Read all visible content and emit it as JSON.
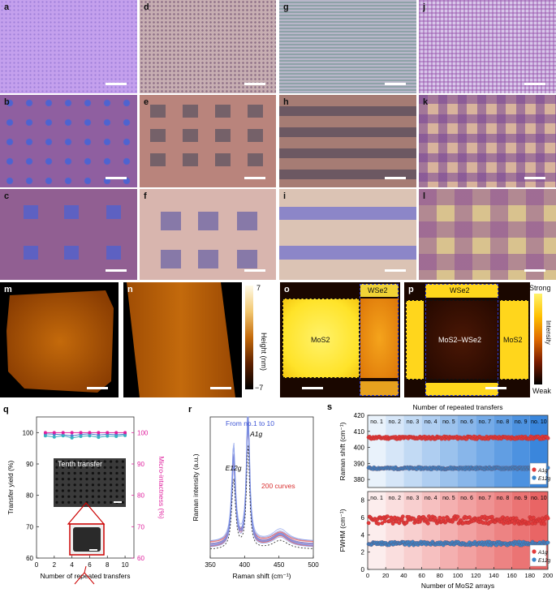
{
  "panel_labels": {
    "a": "a",
    "b": "b",
    "c": "c",
    "d": "d",
    "e": "e",
    "f": "f",
    "g": "g",
    "h": "h",
    "i": "i",
    "j": "j",
    "k": "k",
    "l": "l",
    "m": "m",
    "n": "n",
    "o": "o",
    "p": "p",
    "q": "q",
    "r": "r",
    "s": "s"
  },
  "afm_colorbar": {
    "max": "7",
    "min": "−7",
    "label": "Height (nm)"
  },
  "raman_map_o": {
    "label_wse2": "WSe2",
    "label_mos2": "MoS2"
  },
  "raman_map_p": {
    "label_wse2": "WSe2",
    "label_mos2wse2": "MoS2–WSe2",
    "label_mos2": "MoS2"
  },
  "intensity_colorbar": {
    "top": "Strong",
    "bottom": "Weak",
    "label": "Intensity"
  },
  "colors": {
    "violet": "#b592e8",
    "mauve": "#8f5d94",
    "map_dark": "#1a0700",
    "map_bright": "#ffd400",
    "afm_mid": "#b85c00",
    "red": "#d93232",
    "blue": "#4b7fd0",
    "magenta": "#e0209e"
  },
  "chart_data": [
    {
      "id": "q",
      "type": "line",
      "xlabel": "Number of repeated transfers",
      "ylabel": "Transfer yield (%)",
      "y2label": "Micro-intactness (%)",
      "xlim": [
        0,
        11
      ],
      "ylim": [
        60,
        105
      ],
      "xticks": [
        0,
        2,
        4,
        6,
        8,
        10
      ],
      "yticks": [
        60,
        70,
        80,
        90,
        100
      ],
      "x": [
        1,
        2,
        3,
        4,
        5,
        6,
        7,
        8,
        9,
        10
      ],
      "series": [
        {
          "values": [
            99.6,
            99.5,
            99.3,
            99.0,
            99.4,
            99.6,
            99.2,
            99.5,
            99.3,
            99.5
          ],
          "axis": "left"
        },
        {
          "values": [
            99.0,
            98.6,
            99.0,
            98.3,
            98.8,
            99.0,
            98.5,
            98.9,
            98.8,
            99.1
          ],
          "axis": "left"
        },
        {
          "values": [
            100,
            100,
            100,
            100,
            100,
            100,
            100,
            100,
            100,
            100
          ],
          "axis": "right"
        }
      ],
      "inset_label": "Tenth transfer"
    },
    {
      "id": "r",
      "type": "line",
      "xlabel": "Raman shift (cm⁻¹)",
      "ylabel": "Raman intensity (a.u.)",
      "xlim": [
        350,
        500
      ],
      "xticks": [
        350,
        400,
        450,
        500
      ],
      "annotations": [
        "From no.1 to 10",
        "200 curves",
        "A1g",
        "E12g"
      ],
      "peaks": [
        {
          "name": "E12g",
          "x": 384
        },
        {
          "name": "A1g",
          "x": 405
        }
      ]
    },
    {
      "id": "s-top",
      "type": "scatter",
      "title": "Number of repeated transfers",
      "ylabel": "Raman shift (cm⁻¹)",
      "xlim": [
        0,
        200
      ],
      "ylim": [
        375,
        420
      ],
      "yticks": [
        380,
        390,
        400,
        410,
        420
      ],
      "bands": [
        "no. 1",
        "no. 2",
        "no. 3",
        "no. 4",
        "no. 5",
        "no. 6",
        "no. 7",
        "no. 8",
        "no. 9",
        "no. 10"
      ],
      "series": [
        {
          "name": "A1g",
          "mean": 406,
          "spread": 0.8
        },
        {
          "name": "E12g",
          "mean": 387,
          "spread": 0.6
        }
      ]
    },
    {
      "id": "s-bottom",
      "type": "scatter",
      "xlabel": "Number of MoS2 arrays",
      "ylabel": "FWHM (cm⁻¹)",
      "xlim": [
        0,
        200
      ],
      "ylim": [
        0,
        9
      ],
      "xticks": [
        0,
        20,
        40,
        60,
        80,
        100,
        120,
        140,
        160,
        180,
        200
      ],
      "yticks": [
        0,
        2,
        4,
        6,
        8
      ],
      "bands": [
        "no. 1",
        "no. 2",
        "no. 3",
        "no. 4",
        "no. 5",
        "no. 6",
        "no. 7",
        "no. 8",
        "no. 9",
        "no. 10"
      ],
      "series": [
        {
          "name": "A1g",
          "mean": 5.7,
          "spread": 0.45
        },
        {
          "name": "E12g",
          "mean": 3.0,
          "spread": 0.2
        }
      ]
    }
  ]
}
